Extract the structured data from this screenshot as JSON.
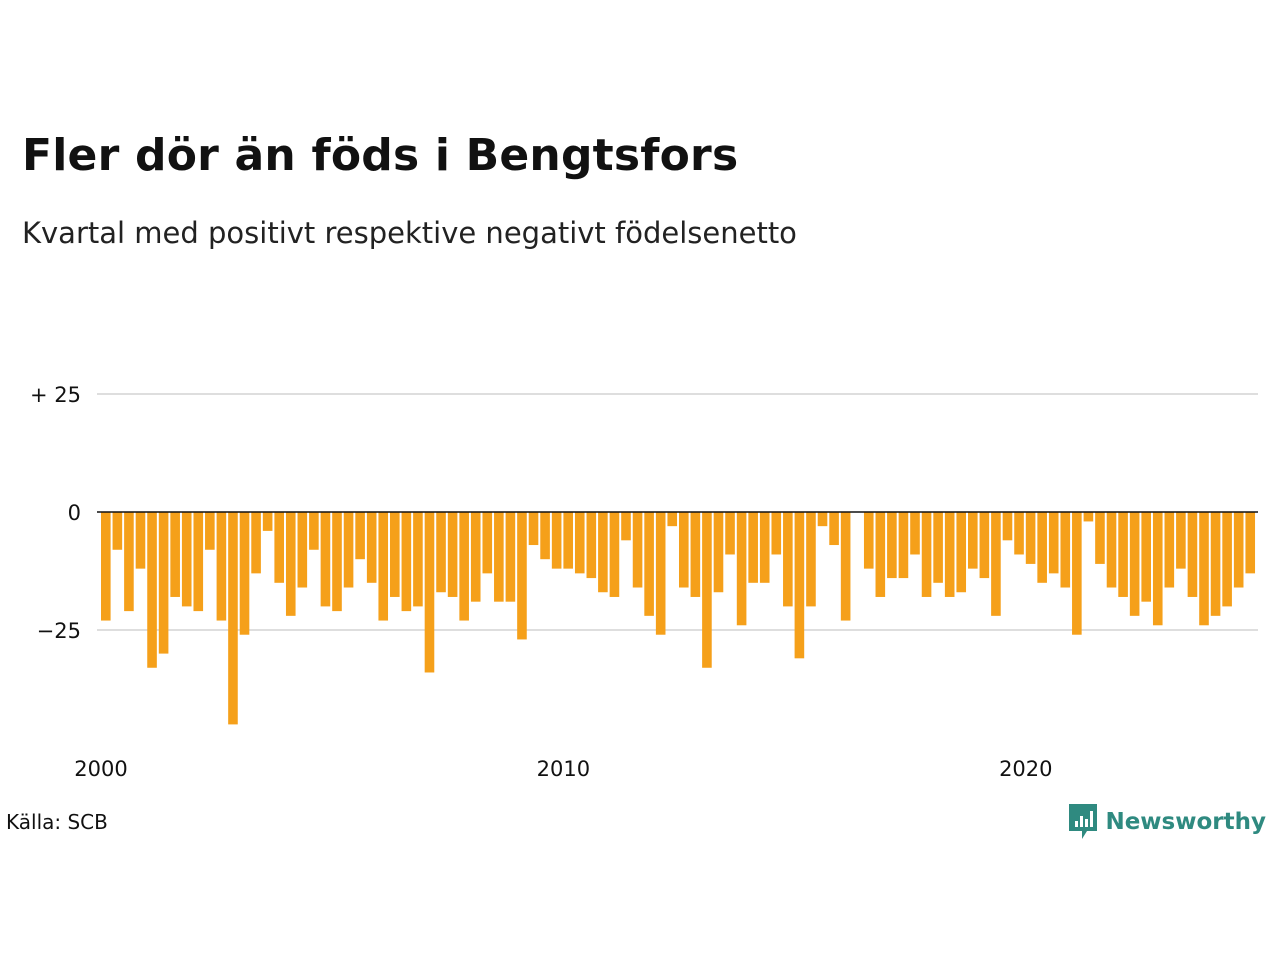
{
  "title": "Fler dör än föds i Bengtsfors",
  "subtitle": "Kvartal med positivt respektive negativt födelsenetto",
  "source": "Källa: SCB",
  "brand": {
    "name": "Newsworthy",
    "icon": "newsworthy-logo-icon",
    "color": "#2f8a80"
  },
  "chart_data": {
    "type": "bar",
    "title": "Fler dör än föds i Bengtsfors",
    "subtitle": "Kvartal med positivt respektive negativt födelsenetto",
    "xlabel": "",
    "ylabel": "",
    "ylim": [
      -46,
      35
    ],
    "grid": true,
    "bar_color": "#f5a01a",
    "y_ticks": [
      {
        "value": 25,
        "label": "+ 25"
      },
      {
        "value": 0,
        "label": "0"
      },
      {
        "value": -25,
        "label": "−25"
      }
    ],
    "x_ticks": [
      {
        "year": 2000,
        "label": "2000"
      },
      {
        "year": 2010,
        "label": "2010"
      },
      {
        "year": 2020,
        "label": "2020"
      }
    ],
    "start": "2000 Q1",
    "frequency": "quarterly",
    "values": [
      -23,
      -8,
      -21,
      -12,
      -33,
      -30,
      -18,
      -20,
      -21,
      -8,
      -23,
      -45,
      -26,
      -13,
      -4,
      -15,
      -22,
      -16,
      -8,
      -20,
      -21,
      -16,
      -10,
      -15,
      -23,
      -18,
      -21,
      -20,
      -34,
      -17,
      -18,
      -23,
      -19,
      -13,
      -19,
      -19,
      -27,
      -7,
      -10,
      -12,
      -12,
      -13,
      -14,
      -17,
      -18,
      -6,
      -16,
      -22,
      -26,
      -3,
      -16,
      -18,
      -33,
      -17,
      -9,
      -24,
      -15,
      -15,
      -9,
      -20,
      -31,
      -20,
      -3,
      -7,
      -23,
      0,
      -12,
      -18,
      -14,
      -14,
      -9,
      -18,
      -15,
      -18,
      -17,
      -12,
      -14,
      -22,
      -6,
      -9,
      -11,
      -15,
      -13,
      -16,
      -26,
      -2,
      -11,
      -16,
      -18,
      -22,
      -19,
      -24,
      -16,
      -12,
      -18,
      -24,
      -22,
      -20,
      -16,
      -13
    ]
  }
}
